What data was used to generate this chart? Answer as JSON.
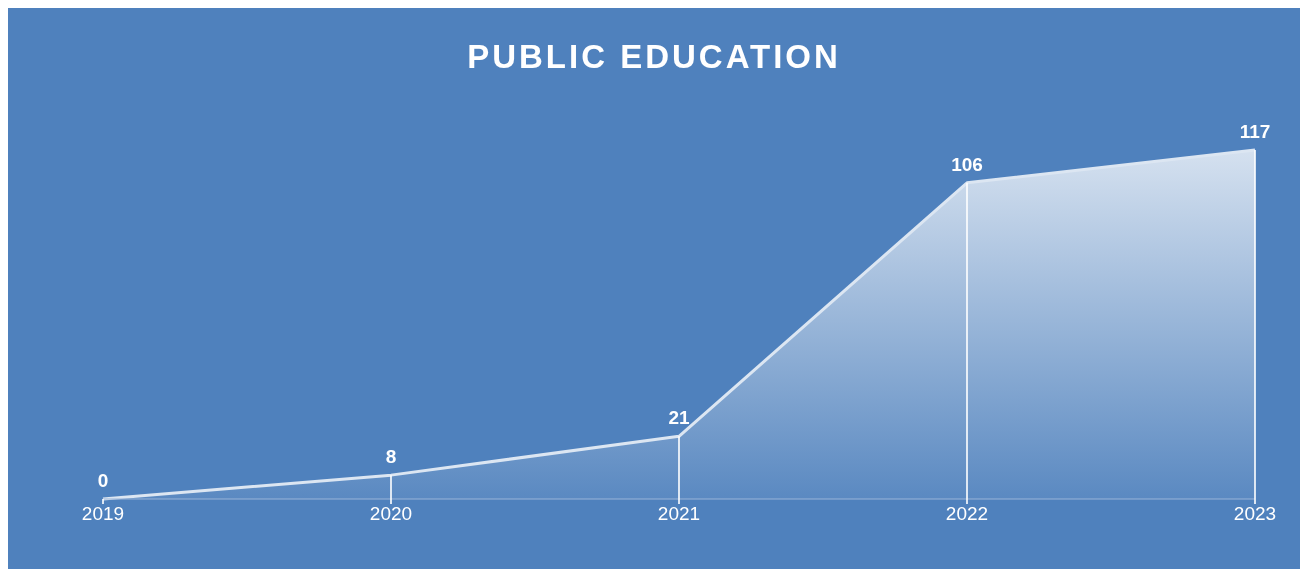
{
  "chart_data": {
    "type": "area",
    "title": "PUBLIC EDUCATION",
    "categories": [
      "2019",
      "2020",
      "2021",
      "2022",
      "2023"
    ],
    "values": [
      0,
      8,
      21,
      106,
      117
    ],
    "color": "#dce6f2",
    "data_labels": true
  }
}
